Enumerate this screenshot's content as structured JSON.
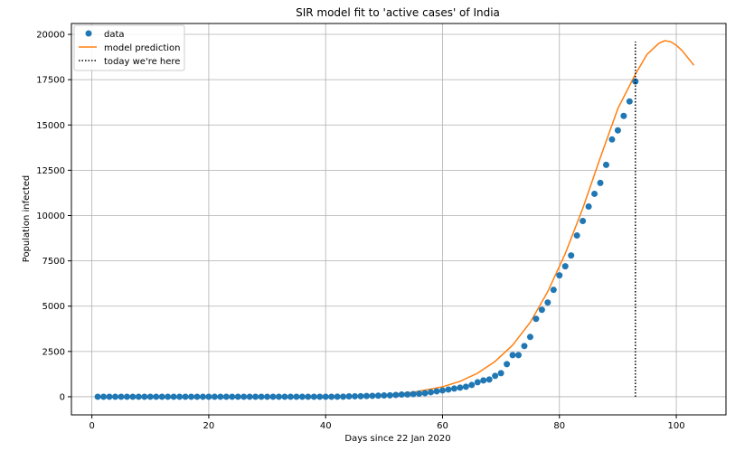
{
  "chart_data": {
    "type": "line",
    "title": "SIR model fit to 'active cases' of India",
    "xlabel": "Days since 22 Jan 2020",
    "ylabel": "Population infected",
    "xlim": [
      -3.5,
      108.5
    ],
    "ylim": [
      -1000,
      20600
    ],
    "xticks": [
      0,
      20,
      40,
      60,
      80,
      100
    ],
    "yticks": [
      0,
      2500,
      5000,
      7500,
      10000,
      12500,
      15000,
      17500,
      20000
    ],
    "grid": true,
    "legend_position": "top-left",
    "colors": {
      "data": "#1f77b4",
      "model": "#ff7f0e",
      "today": "#000000",
      "grid": "#b0b0b0"
    },
    "series": [
      {
        "name": "data",
        "kind": "scatter",
        "x": [
          1,
          2,
          3,
          4,
          5,
          6,
          7,
          8,
          9,
          10,
          11,
          12,
          13,
          14,
          15,
          16,
          17,
          18,
          19,
          20,
          21,
          22,
          23,
          24,
          25,
          26,
          27,
          28,
          29,
          30,
          31,
          32,
          33,
          34,
          35,
          36,
          37,
          38,
          39,
          40,
          41,
          42,
          43,
          44,
          45,
          46,
          47,
          48,
          49,
          50,
          51,
          52,
          53,
          54,
          55,
          56,
          57,
          58,
          59,
          60,
          61,
          62,
          63,
          64,
          65,
          66,
          67,
          68,
          69,
          70,
          71,
          72,
          73,
          74,
          75,
          76,
          77,
          78,
          79,
          80,
          81,
          82,
          83,
          84,
          85,
          86,
          87,
          88,
          89,
          90,
          91,
          92,
          93
        ],
        "y": [
          0,
          0,
          0,
          0,
          0,
          0,
          0,
          0,
          0,
          0,
          0,
          0,
          0,
          0,
          0,
          0,
          0,
          0,
          0,
          0,
          0,
          0,
          0,
          0,
          0,
          0,
          0,
          0,
          0,
          0,
          0,
          0,
          0,
          0,
          0,
          0,
          0,
          0,
          0,
          0,
          0,
          5,
          5,
          20,
          25,
          30,
          40,
          50,
          60,
          70,
          80,
          100,
          120,
          130,
          150,
          170,
          200,
          250,
          300,
          350,
          400,
          450,
          500,
          550,
          650,
          800,
          900,
          950,
          1150,
          1300,
          1800,
          2300,
          2300,
          2800,
          3300,
          4300,
          4800,
          5200,
          5900,
          6700,
          7200,
          7800,
          8900,
          9700,
          10500,
          11200,
          11800,
          12800,
          14200,
          14700,
          15500,
          16300,
          17400
        ]
      },
      {
        "name": "model prediction",
        "kind": "line",
        "x": [
          1,
          10,
          20,
          30,
          40,
          45,
          50,
          55,
          60,
          63,
          66,
          69,
          72,
          75,
          78,
          81,
          84,
          87,
          90,
          93,
          95,
          97,
          98,
          99,
          100,
          101,
          102,
          103
        ],
        "y": [
          0,
          0,
          2,
          5,
          20,
          40,
          100,
          250,
          550,
          850,
          1300,
          1950,
          2850,
          4100,
          5800,
          7900,
          10400,
          13200,
          15900,
          17800,
          18900,
          19500,
          19650,
          19600,
          19400,
          19100,
          18700,
          18300
        ]
      },
      {
        "name": "today we're here",
        "kind": "vline",
        "x": 93,
        "y_range": [
          0,
          19600
        ]
      }
    ]
  }
}
